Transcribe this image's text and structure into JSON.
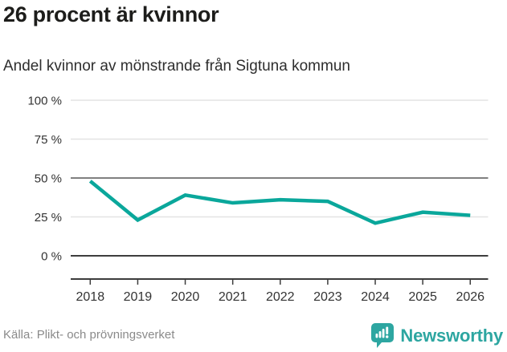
{
  "header": {
    "title": "26 procent är kvinnor",
    "subtitle": "Andel kvinnor av mönstrande från Sigtuna kommun"
  },
  "chart_data": {
    "type": "line",
    "title": "26 procent är kvinnor",
    "subtitle": "Andel kvinnor av mönstrande från Sigtuna kommun",
    "categories": [
      "2018",
      "2019",
      "2020",
      "2021",
      "2022",
      "2023",
      "2024",
      "2025",
      "2026"
    ],
    "series": [
      {
        "name": "Andel kvinnor av mönstrande",
        "values": [
          48,
          23,
          39,
          34,
          36,
          35,
          21,
          28,
          26
        ]
      }
    ],
    "unit": "%",
    "ylim": [
      0,
      100
    ],
    "yticks": [
      0,
      25,
      50,
      75,
      100
    ],
    "ytick_labels": [
      "0 %",
      "25 %",
      "50 %",
      "75 %",
      "100 %"
    ],
    "grid": true,
    "emphasized_ytick": 50,
    "baseline_ytick": 0,
    "legend": "none",
    "colors": {
      "line": "#0aa79b",
      "grid_light": "#e4e4e4",
      "grid_mid": "#808080",
      "axis_dark": "#3d3d3d",
      "tick_text": "#333333"
    }
  },
  "footer": {
    "source": "Källa: Plikt- och prövningsverket",
    "brand": {
      "name": "Newsworthy",
      "color": "#2da6a1",
      "icon": "newsworthy-bars-speech-bubble-icon"
    }
  }
}
